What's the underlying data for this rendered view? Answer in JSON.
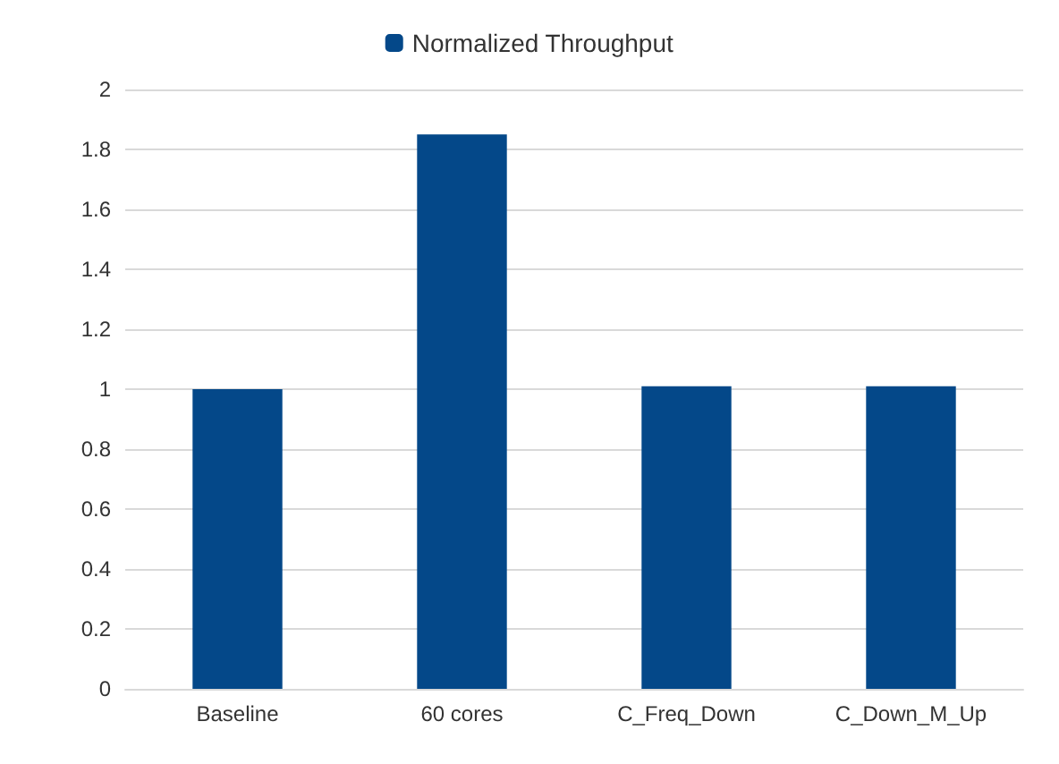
{
  "chart_data": {
    "type": "bar",
    "categories": [
      "Baseline",
      "60 cores",
      "C_Freq_Down",
      "C_Down_M_Up"
    ],
    "series": [
      {
        "name": "Normalized Throughput",
        "color": "#044889",
        "values": [
          1,
          1.85,
          1.01,
          1.01
        ]
      }
    ],
    "ylim": [
      0,
      2
    ],
    "yticks": [
      0,
      0.2,
      0.4,
      0.6,
      0.8,
      1,
      1.2,
      1.4,
      1.6,
      1.8,
      2
    ],
    "grid": "y",
    "legend": "top"
  }
}
